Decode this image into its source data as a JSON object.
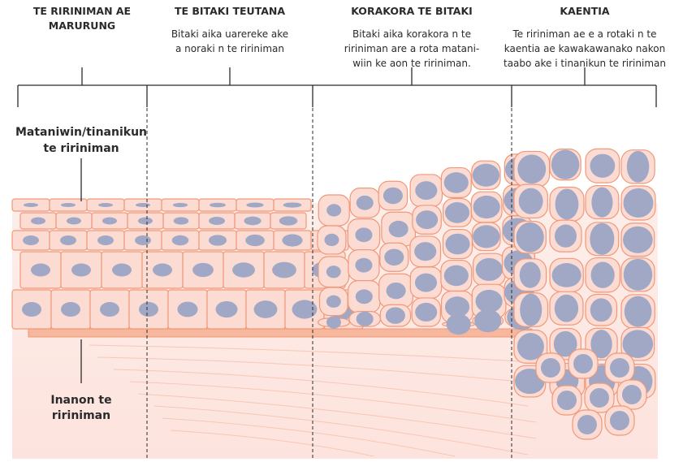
{
  "stages": [
    {
      "title_lines": [
        "TE RIRINIMAN AE",
        "MARURUNG"
      ],
      "description_lines": []
    },
    {
      "title_lines": [
        "TE BITAKI TEUTANA"
      ],
      "description_lines": [
        "Bitaki aika uarereke ake",
        "a noraki n te ririniman"
      ]
    },
    {
      "title_lines": [
        "KORAKORA TE BITAKI"
      ],
      "description_lines": [
        "Bitaki aika korakora n te",
        "ririniman are a rota matani-",
        "wiin ke aon te ririniman."
      ]
    },
    {
      "title_lines": [
        "KAENTIA"
      ],
      "description_lines": [
        "Te ririniman ae e a rotaki n te",
        "kaentia ae kawakawanako nakon",
        "taabo ake i tinanikun te ririniman"
      ]
    }
  ],
  "labels": {
    "surface": [
      "Mataniwin/tinanikun",
      "te ririniman"
    ],
    "inner": [
      "Inanon te",
      "ririniman"
    ]
  }
}
